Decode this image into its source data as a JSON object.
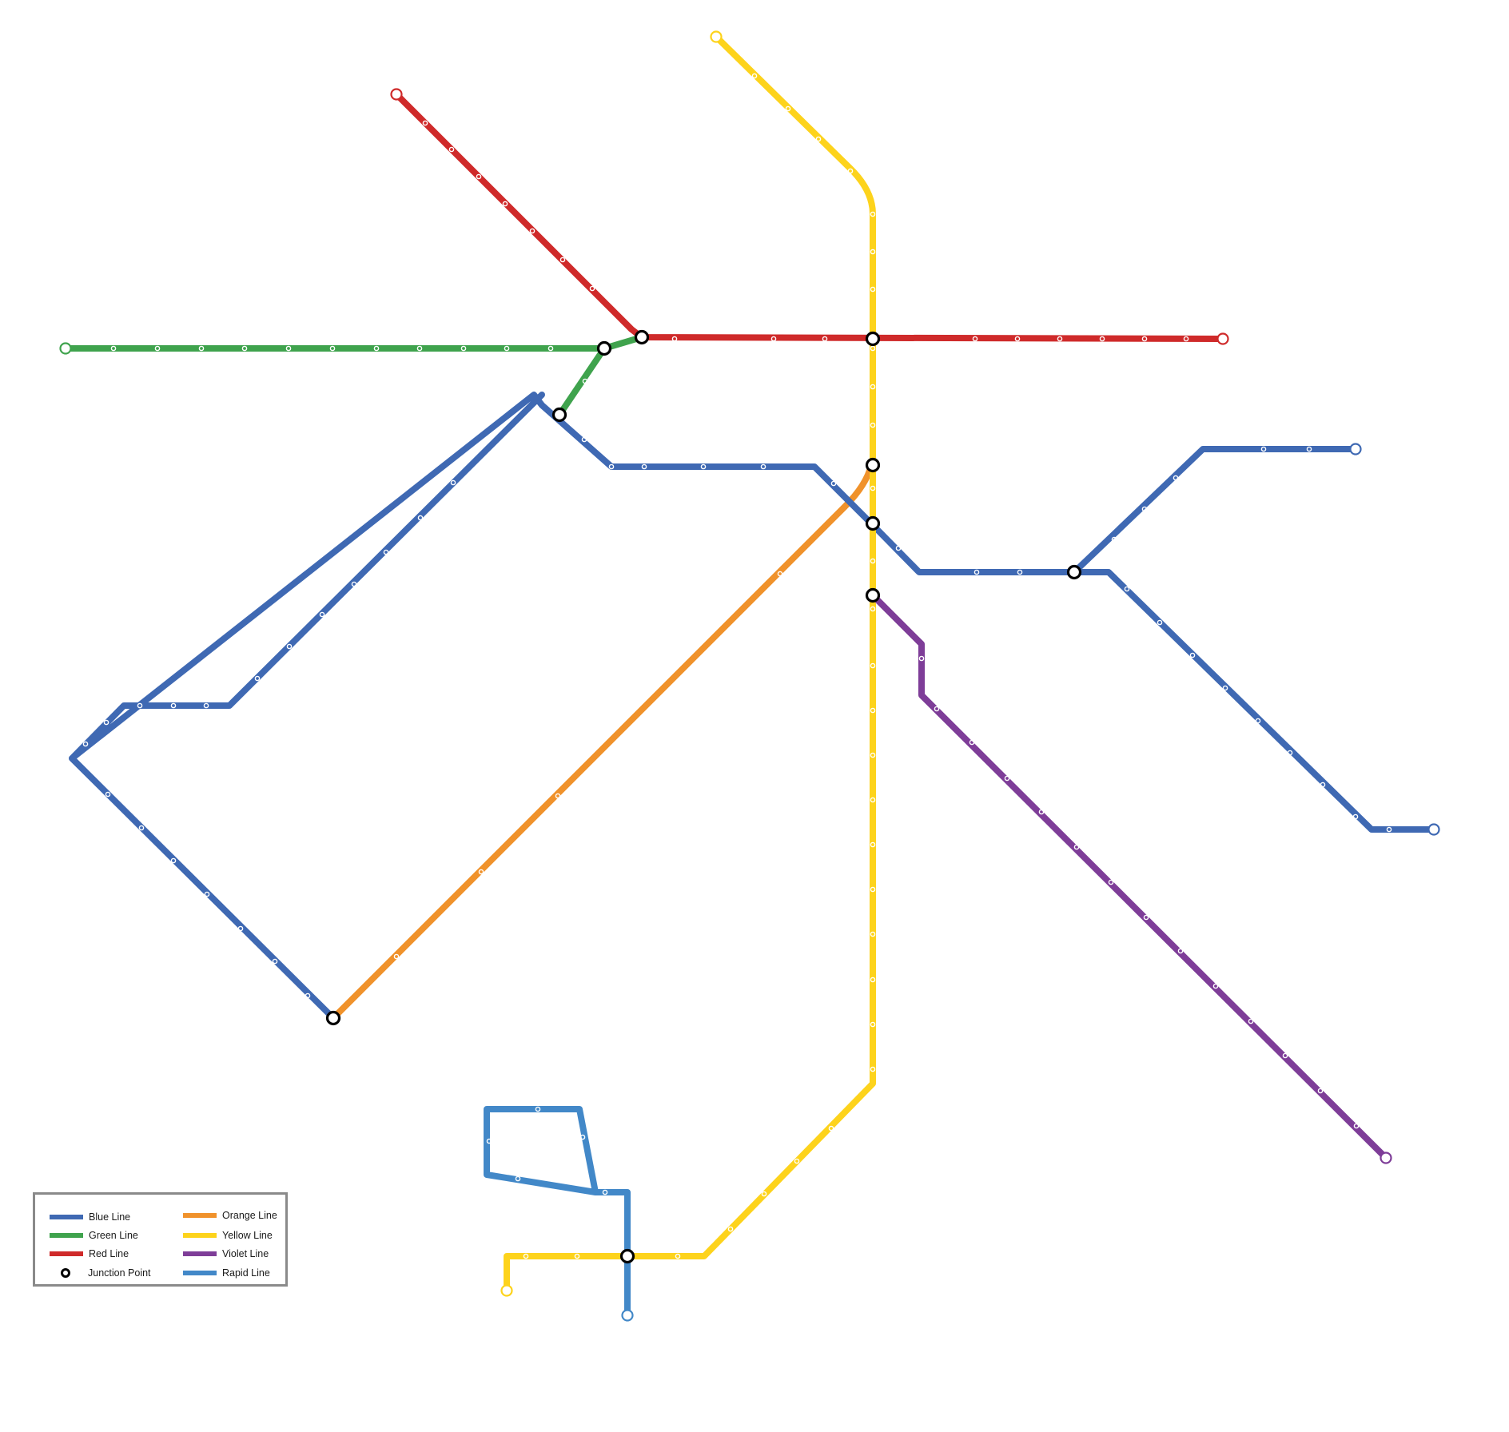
{
  "map": {
    "lines": [
      {
        "id": "blue",
        "color": "#3f69b3"
      },
      {
        "id": "green",
        "color": "#3fa34d"
      },
      {
        "id": "red",
        "color": "#cf2a2a"
      },
      {
        "id": "orange",
        "color": "#f0922b"
      },
      {
        "id": "yellow",
        "color": "#fdd31c"
      },
      {
        "id": "violet",
        "color": "#7e3d98"
      },
      {
        "id": "rapid",
        "color": "#4288c8"
      }
    ],
    "junction_color": "#000000"
  },
  "legend": {
    "items": [
      {
        "label": "Blue Line",
        "color": "#3f69b3"
      },
      {
        "label": "Green Line",
        "color": "#3fa34d"
      },
      {
        "label": "Red Line",
        "color": "#cf2a2a"
      },
      {
        "label": "Junction Point",
        "icon": "junction-icon"
      },
      {
        "label": "Orange Line",
        "color": "#f0922b"
      },
      {
        "label": "Yellow Line",
        "color": "#fdd31c"
      },
      {
        "label": "Violet Line",
        "color": "#7e3d98"
      },
      {
        "label": "Rapid Line",
        "color": "#4288c8"
      }
    ]
  }
}
